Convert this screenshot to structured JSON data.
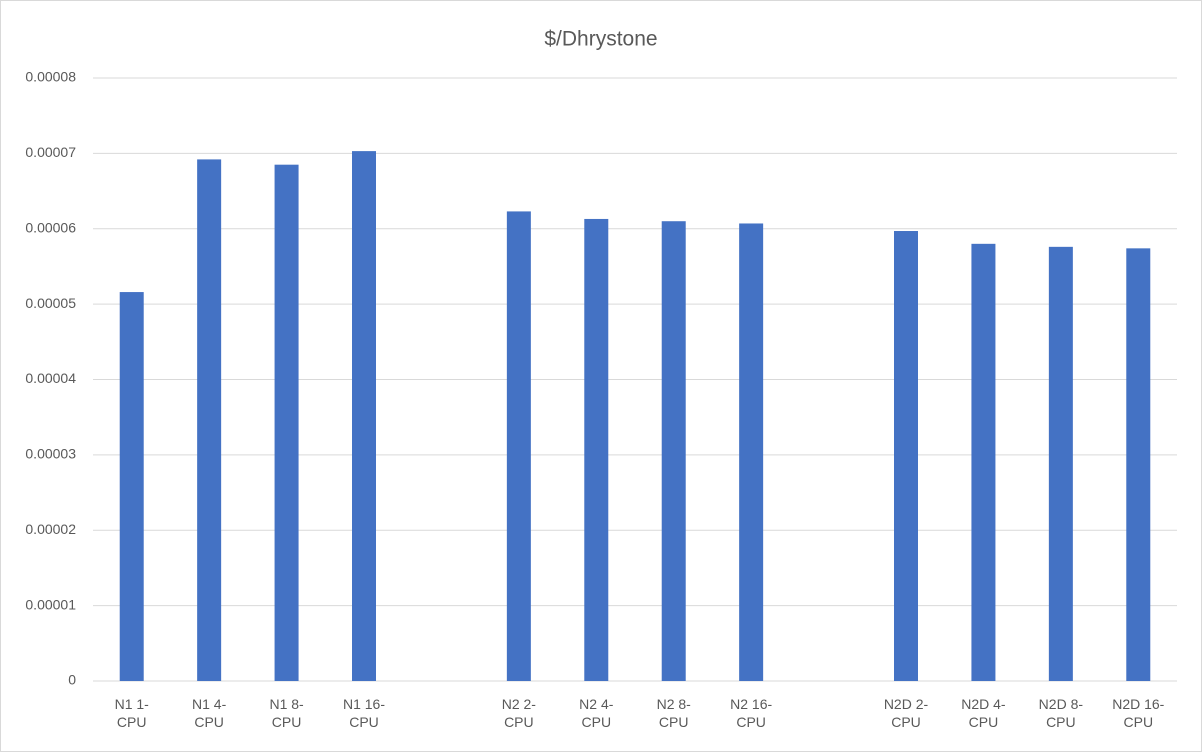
{
  "chart_data": {
    "type": "bar",
    "title": "$/Dhrystone",
    "categories": [
      "N1 1-CPU",
      "N1 4-CPU",
      "N1 8-CPU",
      "N1 16-CPU",
      null,
      "N2 2-CPU",
      "N2 4-CPU",
      "N2 8-CPU",
      "N2 16-CPU",
      null,
      "N2D 2-CPU",
      "N2D 4-CPU",
      "N2D 8-CPU",
      "N2D 16-CPU"
    ],
    "values": [
      5.16e-05,
      6.92e-05,
      6.85e-05,
      7.03e-05,
      null,
      6.23e-05,
      6.13e-05,
      6.1e-05,
      6.07e-05,
      null,
      5.97e-05,
      5.8e-05,
      5.76e-05,
      5.74e-05
    ],
    "color": "#4472c4",
    "ylim": [
      0,
      8e-05
    ],
    "yticks": [
      0,
      1e-05,
      2e-05,
      3e-05,
      4e-05,
      5e-05,
      6e-05,
      7e-05,
      8e-05
    ],
    "grid": true
  }
}
